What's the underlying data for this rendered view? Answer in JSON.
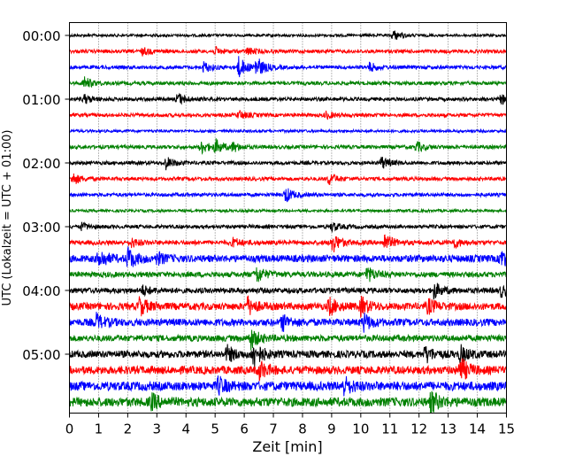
{
  "chart_data": {
    "type": "line",
    "subtype": "helicorder",
    "xlabel": "Zeit  [min]",
    "ylabel": "UTC (Lokalzeit = UTC + 01:00)",
    "xlim": [
      0,
      15
    ],
    "x_ticks": [
      "0",
      "1",
      "2",
      "3",
      "4",
      "5",
      "6",
      "7",
      "8",
      "9",
      "10",
      "11",
      "12",
      "13",
      "14",
      "15"
    ],
    "y_ticks": [
      "00:00",
      "01:00",
      "02:00",
      "03:00",
      "04:00",
      "05:00"
    ],
    "grid": "vertical dotted at each minute",
    "row_minutes": 15,
    "colors": [
      "#000000",
      "#ff0000",
      "#0000ff",
      "#008000"
    ],
    "rows": [
      {
        "start": "00:00",
        "noise": 1.5,
        "events": [
          [
            11.1,
            6
          ]
        ]
      },
      {
        "start": "00:15",
        "noise": 2,
        "events": [
          [
            2.5,
            4
          ],
          [
            5,
            4
          ],
          [
            6.1,
            4
          ]
        ]
      },
      {
        "start": "00:30",
        "noise": 2,
        "events": [
          [
            4.6,
            6
          ],
          [
            5.8,
            12
          ],
          [
            6.4,
            12
          ],
          [
            10.3,
            5
          ]
        ]
      },
      {
        "start": "00:45",
        "noise": 2,
        "events": [
          [
            0.5,
            7
          ]
        ]
      },
      {
        "start": "01:00",
        "noise": 2,
        "events": [
          [
            0.5,
            5
          ],
          [
            3.7,
            7
          ],
          [
            14.8,
            5
          ]
        ]
      },
      {
        "start": "01:15",
        "noise": 2,
        "events": [
          [
            5.8,
            5
          ],
          [
            8.8,
            4
          ]
        ]
      },
      {
        "start": "01:30",
        "noise": 1.5,
        "events": []
      },
      {
        "start": "01:45",
        "noise": 2,
        "events": [
          [
            4.5,
            8
          ],
          [
            5,
            8
          ],
          [
            5.6,
            5
          ],
          [
            11.9,
            6
          ]
        ]
      },
      {
        "start": "02:00",
        "noise": 2,
        "events": [
          [
            3.3,
            7
          ],
          [
            10.7,
            7
          ]
        ]
      },
      {
        "start": "02:15",
        "noise": 2,
        "events": [
          [
            0.1,
            7
          ],
          [
            8.9,
            7
          ]
        ]
      },
      {
        "start": "02:30",
        "noise": 2,
        "events": [
          [
            7.4,
            9
          ]
        ]
      },
      {
        "start": "02:45",
        "noise": 1.5,
        "events": []
      },
      {
        "start": "03:00",
        "noise": 2,
        "events": [
          [
            0.4,
            4
          ],
          [
            9,
            5
          ]
        ]
      },
      {
        "start": "03:15",
        "noise": 2.5,
        "events": [
          [
            2.1,
            5
          ],
          [
            5.6,
            5
          ],
          [
            9,
            12
          ],
          [
            10.8,
            10
          ],
          [
            13.2,
            5
          ]
        ]
      },
      {
        "start": "03:30",
        "noise": 4,
        "events": [
          [
            1,
            11
          ],
          [
            2,
            12
          ],
          [
            3,
            6
          ],
          [
            14.8,
            10
          ]
        ]
      },
      {
        "start": "03:45",
        "noise": 3,
        "events": [
          [
            6.4,
            10
          ],
          [
            10.2,
            9
          ]
        ]
      },
      {
        "start": "04:00",
        "noise": 3,
        "events": [
          [
            2.5,
            5
          ],
          [
            12.5,
            9
          ],
          [
            14.8,
            6
          ]
        ]
      },
      {
        "start": "04:15",
        "noise": 4,
        "events": [
          [
            2.4,
            10
          ],
          [
            6.1,
            10
          ],
          [
            8.9,
            10
          ],
          [
            10,
            10
          ],
          [
            12.3,
            8
          ]
        ]
      },
      {
        "start": "04:30",
        "noise": 4,
        "events": [
          [
            0.9,
            9
          ],
          [
            7.3,
            9
          ],
          [
            10.1,
            9
          ]
        ]
      },
      {
        "start": "04:45",
        "noise": 3.5,
        "events": [
          [
            6.2,
            12
          ]
        ]
      },
      {
        "start": "05:00",
        "noise": 4,
        "events": [
          [
            5.4,
            9
          ],
          [
            6.3,
            16
          ],
          [
            12.2,
            9
          ],
          [
            13.4,
            9
          ]
        ]
      },
      {
        "start": "05:15",
        "noise": 4.5,
        "events": [
          [
            6.5,
            10
          ],
          [
            13.4,
            14
          ]
        ]
      },
      {
        "start": "05:30",
        "noise": 5,
        "events": [
          [
            5.1,
            9
          ],
          [
            9.4,
            10
          ]
        ]
      },
      {
        "start": "05:45",
        "noise": 5,
        "events": [
          [
            2.8,
            8
          ],
          [
            12.4,
            12
          ]
        ]
      }
    ]
  }
}
